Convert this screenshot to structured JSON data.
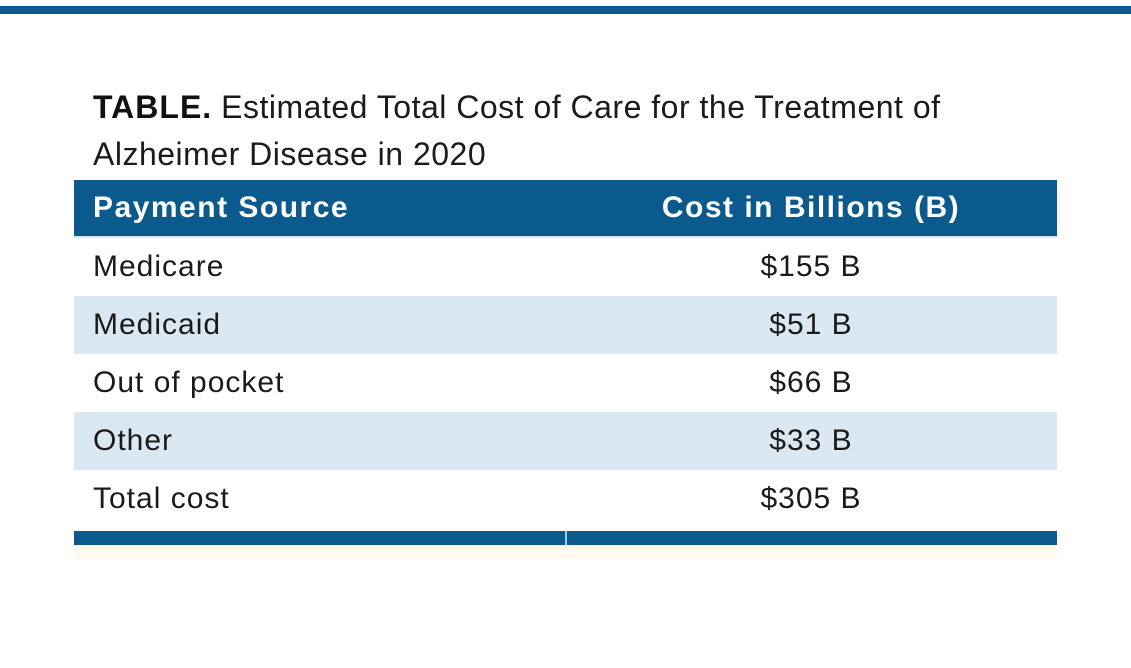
{
  "figure": {
    "title_label": "TABLE.",
    "title_line1": "Estimated Total Cost of Care for the Treatment of",
    "title_line2": "Alzheimer Disease in 2020"
  },
  "table": {
    "columns": [
      "Payment Source",
      "Cost in Billions (B)"
    ],
    "rows": [
      {
        "source": "Medicare",
        "cost": "$155 B"
      },
      {
        "source": "Medicaid",
        "cost": "$51 B"
      },
      {
        "source": "Out of pocket",
        "cost": "$66 B"
      },
      {
        "source": "Other",
        "cost": "$33 B"
      },
      {
        "source": "Total cost",
        "cost": "$305 B"
      }
    ]
  },
  "colors": {
    "accent_blue": "#0B5A8E",
    "row_alt_blue": "#DAE8F4",
    "text": "#1A1A1A"
  },
  "chart_data": {
    "type": "table",
    "title": "TABLE. Estimated Total Cost of Care for the Treatment of Alzheimer Disease in 2020",
    "columns": [
      "Payment Source",
      "Cost in Billions (B)"
    ],
    "categories": [
      "Medicare",
      "Medicaid",
      "Out of pocket",
      "Other",
      "Total cost"
    ],
    "values": [
      155,
      51,
      66,
      33,
      305
    ],
    "unit": "USD billions"
  }
}
